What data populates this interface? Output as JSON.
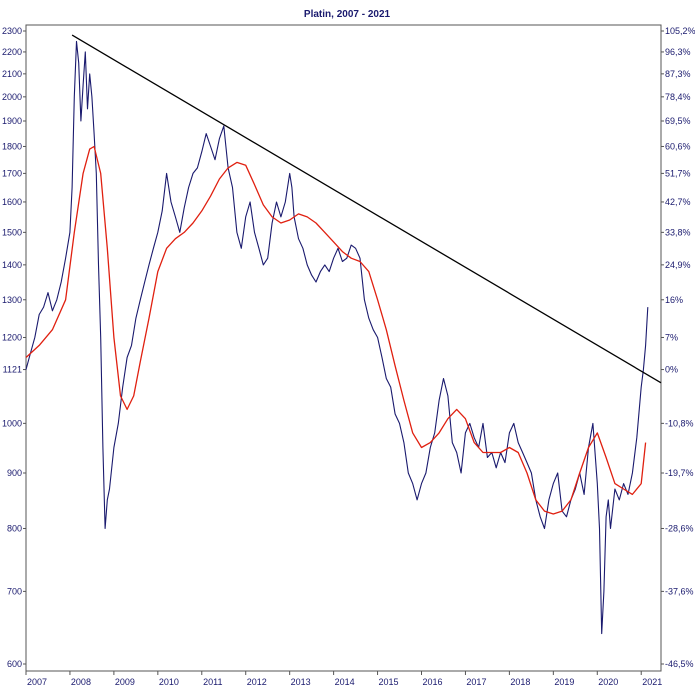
{
  "chart_data": {
    "type": "line",
    "title": "Platin, 2007 - 2021",
    "xlabel": "",
    "ylabel": "",
    "y_scale": "log",
    "xlim": [
      2007.0,
      2021.45
    ],
    "ylim": [
      600,
      2300
    ],
    "grid": false,
    "legend": "none",
    "x_ticks": [
      "2007",
      "2008",
      "2009",
      "2010",
      "2011",
      "2012",
      "2013",
      "2014",
      "2015",
      "2016",
      "2017",
      "2018",
      "2019",
      "2020",
      "2021"
    ],
    "y_ticks_left": [
      "2300",
      "2200",
      "2100",
      "2000",
      "1900",
      "1800",
      "1700",
      "1600",
      "1500",
      "1400",
      "1300",
      "1200",
      "1121",
      "1000",
      "900",
      "800",
      "700",
      "600"
    ],
    "y_ticks_right": [
      "105,2%",
      "96,3%",
      "87,3%",
      "78,4%",
      "69,5%",
      "60,6%",
      "51,7%",
      "42,7%",
      "33,8%",
      "24,9%",
      "16%",
      "7%",
      "0%",
      "-10,8%",
      "-19,7%",
      "-28,6%",
      "-37,6%",
      "-46,5%"
    ],
    "colors": {
      "price": "#1a1a6e",
      "moving_average": "#e02010",
      "trendline": "#000000",
      "text": "#1a1a6e",
      "axis": "#555555"
    },
    "series": [
      {
        "role": "price",
        "x": [
          2007.0,
          2007.1,
          2007.2,
          2007.3,
          2007.4,
          2007.5,
          2007.6,
          2007.7,
          2007.8,
          2007.9,
          2008.0,
          2008.05,
          2008.1,
          2008.15,
          2008.2,
          2008.25,
          2008.3,
          2008.35,
          2008.4,
          2008.45,
          2008.5,
          2008.55,
          2008.6,
          2008.65,
          2008.7,
          2008.75,
          2008.8,
          2008.85,
          2008.9,
          2009.0,
          2009.1,
          2009.2,
          2009.3,
          2009.4,
          2009.5,
          2009.6,
          2009.7,
          2009.8,
          2009.9,
          2010.0,
          2010.1,
          2010.2,
          2010.3,
          2010.4,
          2010.5,
          2010.6,
          2010.7,
          2010.8,
          2010.9,
          2011.0,
          2011.1,
          2011.2,
          2011.3,
          2011.4,
          2011.5,
          2011.55,
          2011.6,
          2011.7,
          2011.8,
          2011.9,
          2012.0,
          2012.1,
          2012.2,
          2012.3,
          2012.4,
          2012.5,
          2012.6,
          2012.7,
          2012.8,
          2012.9,
          2013.0,
          2013.05,
          2013.1,
          2013.2,
          2013.3,
          2013.4,
          2013.5,
          2013.6,
          2013.7,
          2013.8,
          2013.9,
          2014.0,
          2014.1,
          2014.2,
          2014.3,
          2014.4,
          2014.5,
          2014.6,
          2014.7,
          2014.8,
          2014.9,
          2015.0,
          2015.1,
          2015.2,
          2015.3,
          2015.4,
          2015.5,
          2015.6,
          2015.7,
          2015.8,
          2015.9,
          2016.0,
          2016.1,
          2016.2,
          2016.3,
          2016.4,
          2016.5,
          2016.6,
          2016.7,
          2016.8,
          2016.9,
          2017.0,
          2017.1,
          2017.2,
          2017.3,
          2017.4,
          2017.5,
          2017.6,
          2017.7,
          2017.8,
          2017.9,
          2018.0,
          2018.1,
          2018.2,
          2018.3,
          2018.4,
          2018.5,
          2018.6,
          2018.7,
          2018.8,
          2018.9,
          2019.0,
          2019.1,
          2019.2,
          2019.3,
          2019.4,
          2019.5,
          2019.6,
          2019.7,
          2019.8,
          2019.9,
          2020.0,
          2020.05,
          2020.1,
          2020.15,
          2020.2,
          2020.25,
          2020.3,
          2020.4,
          2020.5,
          2020.6,
          2020.7,
          2020.8,
          2020.9,
          2021.0,
          2021.05,
          2021.1,
          2021.15
        ],
        "y": [
          1121,
          1160,
          1200,
          1260,
          1280,
          1320,
          1270,
          1300,
          1350,
          1420,
          1500,
          1650,
          2000,
          2250,
          2150,
          1900,
          2050,
          2200,
          1950,
          2100,
          2000,
          1850,
          1700,
          1400,
          1200,
          950,
          800,
          850,
          870,
          950,
          1000,
          1080,
          1150,
          1180,
          1250,
          1300,
          1350,
          1400,
          1450,
          1500,
          1570,
          1700,
          1600,
          1550,
          1500,
          1580,
          1650,
          1700,
          1720,
          1780,
          1850,
          1800,
          1750,
          1830,
          1880,
          1800,
          1720,
          1650,
          1500,
          1450,
          1550,
          1600,
          1500,
          1450,
          1400,
          1420,
          1530,
          1600,
          1550,
          1600,
          1700,
          1650,
          1550,
          1480,
          1450,
          1400,
          1370,
          1350,
          1380,
          1400,
          1380,
          1420,
          1450,
          1410,
          1420,
          1460,
          1450,
          1420,
          1300,
          1250,
          1220,
          1200,
          1150,
          1100,
          1080,
          1020,
          1000,
          960,
          900,
          880,
          850,
          880,
          900,
          950,
          980,
          1050,
          1100,
          1060,
          960,
          940,
          900,
          980,
          1000,
          970,
          950,
          1000,
          930,
          940,
          910,
          940,
          920,
          980,
          1000,
          960,
          940,
          920,
          900,
          850,
          820,
          800,
          850,
          880,
          900,
          830,
          820,
          850,
          870,
          900,
          860,
          950,
          1000,
          880,
          800,
          640,
          700,
          820,
          850,
          800,
          870,
          850,
          880,
          860,
          900,
          970,
          1080,
          1121,
          1180,
          1280
        ]
      },
      {
        "role": "moving_average",
        "x": [
          2007.0,
          2007.3,
          2007.6,
          2007.9,
          2008.1,
          2008.3,
          2008.45,
          2008.55,
          2008.7,
          2008.85,
          2009.0,
          2009.15,
          2009.3,
          2009.45,
          2009.6,
          2009.8,
          2010.0,
          2010.2,
          2010.4,
          2010.6,
          2010.8,
          2011.0,
          2011.2,
          2011.4,
          2011.6,
          2011.8,
          2012.0,
          2012.2,
          2012.4,
          2012.6,
          2012.8,
          2013.0,
          2013.2,
          2013.4,
          2013.6,
          2013.8,
          2014.0,
          2014.2,
          2014.4,
          2014.6,
          2014.8,
          2015.0,
          2015.2,
          2015.4,
          2015.6,
          2015.8,
          2016.0,
          2016.2,
          2016.4,
          2016.6,
          2016.8,
          2017.0,
          2017.2,
          2017.4,
          2017.6,
          2017.8,
          2018.0,
          2018.2,
          2018.4,
          2018.6,
          2018.8,
          2019.0,
          2019.2,
          2019.4,
          2019.6,
          2019.8,
          2020.0,
          2020.2,
          2020.4,
          2020.6,
          2020.8,
          2021.0,
          2021.1
        ],
        "y": [
          1150,
          1180,
          1220,
          1300,
          1500,
          1700,
          1790,
          1800,
          1700,
          1450,
          1200,
          1060,
          1030,
          1060,
          1140,
          1250,
          1380,
          1450,
          1480,
          1500,
          1530,
          1570,
          1620,
          1680,
          1720,
          1740,
          1730,
          1660,
          1590,
          1550,
          1530,
          1540,
          1560,
          1550,
          1530,
          1500,
          1470,
          1440,
          1420,
          1410,
          1380,
          1300,
          1220,
          1130,
          1050,
          980,
          950,
          960,
          980,
          1010,
          1030,
          1010,
          960,
          940,
          940,
          940,
          950,
          940,
          900,
          850,
          830,
          825,
          830,
          850,
          900,
          950,
          980,
          930,
          880,
          870,
          860,
          880,
          960
        ]
      },
      {
        "role": "trendline",
        "x": [
          2008.05,
          2021.45
        ],
        "y": [
          2280,
          1090
        ]
      }
    ]
  }
}
